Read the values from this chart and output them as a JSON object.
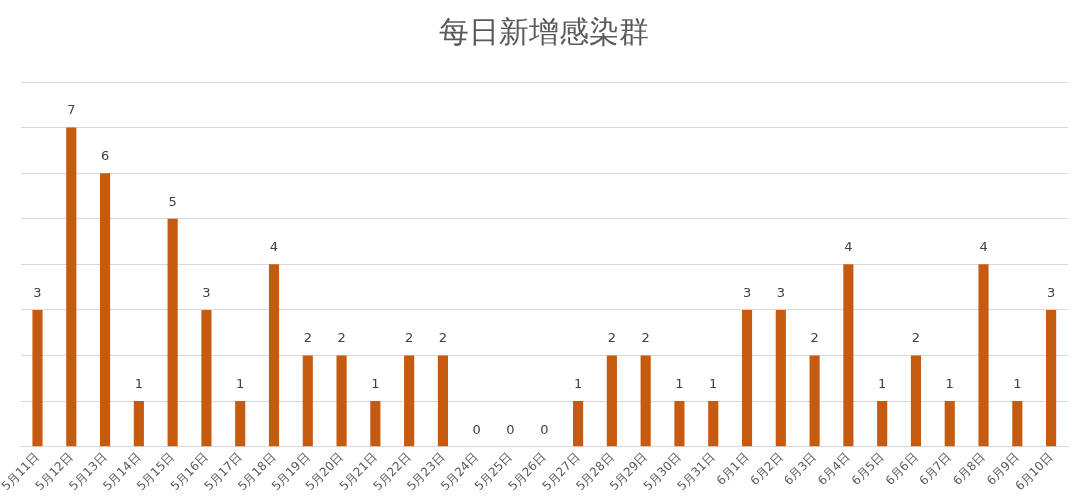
{
  "chart_data": {
    "type": "bar",
    "title": "每日新增感染群",
    "categories": [
      "5月11日",
      "5月12日",
      "5月13日",
      "5月14日",
      "5月15日",
      "5月16日",
      "5月17日",
      "5月18日",
      "5月19日",
      "5月20日",
      "5月21日",
      "5月22日",
      "5月23日",
      "5月24日",
      "5月25日",
      "5月26日",
      "5月27日",
      "5月28日",
      "5月29日",
      "5月30日",
      "5月31日",
      "6月1日",
      "6月2日",
      "6月3日",
      "6月4日",
      "6月5日",
      "6月6日",
      "6月7日",
      "6月8日",
      "6月9日",
      "6月10日"
    ],
    "values": [
      3,
      7,
      6,
      1,
      5,
      3,
      1,
      4,
      2,
      2,
      1,
      2,
      2,
      0,
      0,
      0,
      1,
      2,
      2,
      1,
      1,
      3,
      3,
      2,
      4,
      1,
      2,
      1,
      4,
      1,
      3
    ],
    "color": "#c55a11",
    "ylim": [
      0,
      8
    ],
    "yticks": [
      0,
      1,
      2,
      3,
      4,
      5,
      6,
      7,
      8
    ],
    "grid": "y",
    "tick_labels": "x",
    "data_labels": true
  }
}
